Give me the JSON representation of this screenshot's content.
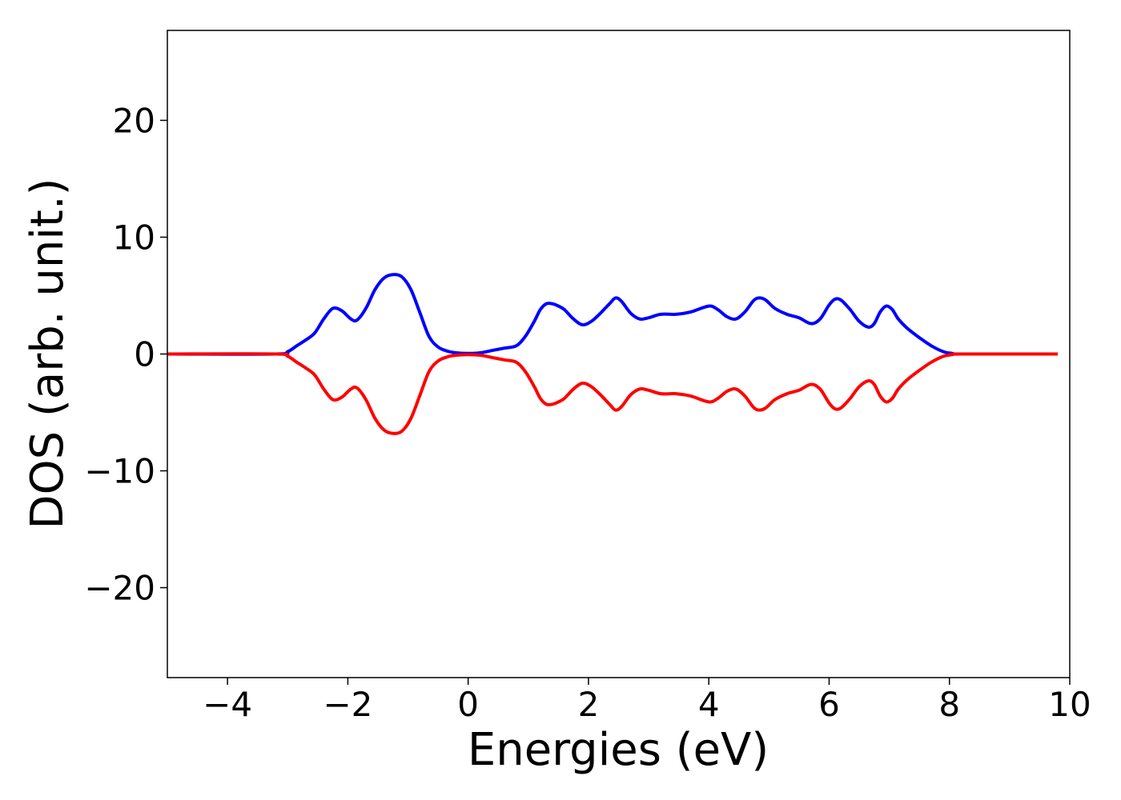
{
  "chart_data": {
    "type": "line",
    "xlabel": "Energies (eV)",
    "ylabel": "DOS (arb. unit.)",
    "xlim": [
      -5,
      10
    ],
    "ylim": [
      -27.7,
      27.7
    ],
    "xticks": [
      -4,
      -2,
      0,
      2,
      4,
      6,
      8,
      10
    ],
    "yticks": [
      -20,
      -10,
      0,
      10,
      20
    ],
    "xtick_labels": [
      "−4",
      "−2",
      "0",
      "2",
      "4",
      "6",
      "8",
      "10"
    ],
    "ytick_labels": [
      "−20",
      "−10",
      "0",
      "10",
      "20"
    ],
    "grid": false,
    "series": [
      {
        "color": "#0000ff",
        "x": [
          -5.0,
          -3.2,
          -3.0,
          -2.85,
          -2.7,
          -2.55,
          -2.4,
          -2.25,
          -2.1,
          -1.95,
          -1.85,
          -1.7,
          -1.55,
          -1.4,
          -1.25,
          -1.1,
          -0.95,
          -0.8,
          -0.65,
          -0.5,
          -0.35,
          -0.2,
          0.0,
          0.2,
          0.4,
          0.6,
          0.8,
          0.95,
          1.1,
          1.2,
          1.3,
          1.4,
          1.5,
          1.6,
          1.75,
          1.9,
          2.05,
          2.2,
          2.35,
          2.45,
          2.55,
          2.7,
          2.85,
          3.0,
          3.2,
          3.45,
          3.7,
          4.0,
          4.15,
          4.3,
          4.45,
          4.6,
          4.75,
          4.85,
          4.95,
          5.1,
          5.3,
          5.5,
          5.7,
          5.85,
          6.0,
          6.1,
          6.2,
          6.35,
          6.5,
          6.65,
          6.75,
          6.85,
          6.95,
          7.05,
          7.15,
          7.3,
          7.5,
          7.7,
          7.9,
          8.05,
          8.2,
          9.8
        ],
        "y": [
          0.0,
          0.0,
          0.2,
          0.7,
          1.2,
          1.8,
          3.0,
          3.9,
          3.7,
          3.0,
          2.9,
          3.9,
          5.5,
          6.5,
          6.8,
          6.6,
          5.5,
          3.5,
          1.5,
          0.6,
          0.25,
          0.1,
          0.05,
          0.1,
          0.3,
          0.5,
          0.7,
          1.5,
          2.8,
          3.8,
          4.3,
          4.3,
          4.1,
          3.8,
          3.0,
          2.5,
          2.8,
          3.5,
          4.3,
          4.8,
          4.5,
          3.5,
          3.0,
          3.1,
          3.4,
          3.4,
          3.6,
          4.1,
          3.8,
          3.2,
          3.0,
          3.6,
          4.6,
          4.8,
          4.6,
          3.9,
          3.4,
          3.1,
          2.6,
          3.0,
          4.2,
          4.7,
          4.6,
          3.8,
          2.8,
          2.3,
          2.6,
          3.6,
          4.1,
          3.8,
          3.0,
          2.2,
          1.4,
          0.7,
          0.2,
          0.05,
          0.0,
          0.0
        ]
      },
      {
        "color": "#ff0000",
        "x": [
          -5.0,
          -3.2,
          -3.0,
          -2.85,
          -2.7,
          -2.55,
          -2.4,
          -2.25,
          -2.1,
          -1.95,
          -1.85,
          -1.7,
          -1.55,
          -1.4,
          -1.25,
          -1.1,
          -0.95,
          -0.8,
          -0.65,
          -0.5,
          -0.35,
          -0.2,
          0.0,
          0.2,
          0.4,
          0.6,
          0.8,
          0.95,
          1.1,
          1.2,
          1.3,
          1.4,
          1.5,
          1.6,
          1.75,
          1.9,
          2.05,
          2.2,
          2.35,
          2.45,
          2.55,
          2.7,
          2.85,
          3.0,
          3.2,
          3.45,
          3.7,
          4.0,
          4.15,
          4.3,
          4.45,
          4.6,
          4.75,
          4.85,
          4.95,
          5.1,
          5.3,
          5.5,
          5.7,
          5.85,
          6.0,
          6.1,
          6.2,
          6.35,
          6.5,
          6.65,
          6.75,
          6.85,
          6.95,
          7.05,
          7.15,
          7.3,
          7.5,
          7.7,
          7.9,
          8.05,
          8.2,
          9.8
        ],
        "y": [
          0.0,
          0.0,
          -0.2,
          -0.7,
          -1.2,
          -1.8,
          -3.0,
          -3.9,
          -3.7,
          -3.0,
          -2.9,
          -3.9,
          -5.5,
          -6.5,
          -6.8,
          -6.6,
          -5.5,
          -3.5,
          -1.5,
          -0.6,
          -0.25,
          -0.1,
          -0.05,
          -0.1,
          -0.3,
          -0.5,
          -0.7,
          -1.5,
          -2.8,
          -3.8,
          -4.3,
          -4.3,
          -4.1,
          -3.8,
          -3.0,
          -2.5,
          -2.8,
          -3.5,
          -4.3,
          -4.8,
          -4.5,
          -3.5,
          -3.0,
          -3.1,
          -3.4,
          -3.4,
          -3.6,
          -4.1,
          -3.8,
          -3.2,
          -3.0,
          -3.6,
          -4.6,
          -4.8,
          -4.6,
          -3.9,
          -3.4,
          -3.1,
          -2.6,
          -3.0,
          -4.2,
          -4.7,
          -4.6,
          -3.8,
          -2.8,
          -2.3,
          -2.6,
          -3.6,
          -4.1,
          -3.8,
          -3.0,
          -2.2,
          -1.4,
          -0.7,
          -0.2,
          -0.05,
          0.0,
          0.0
        ]
      }
    ]
  }
}
